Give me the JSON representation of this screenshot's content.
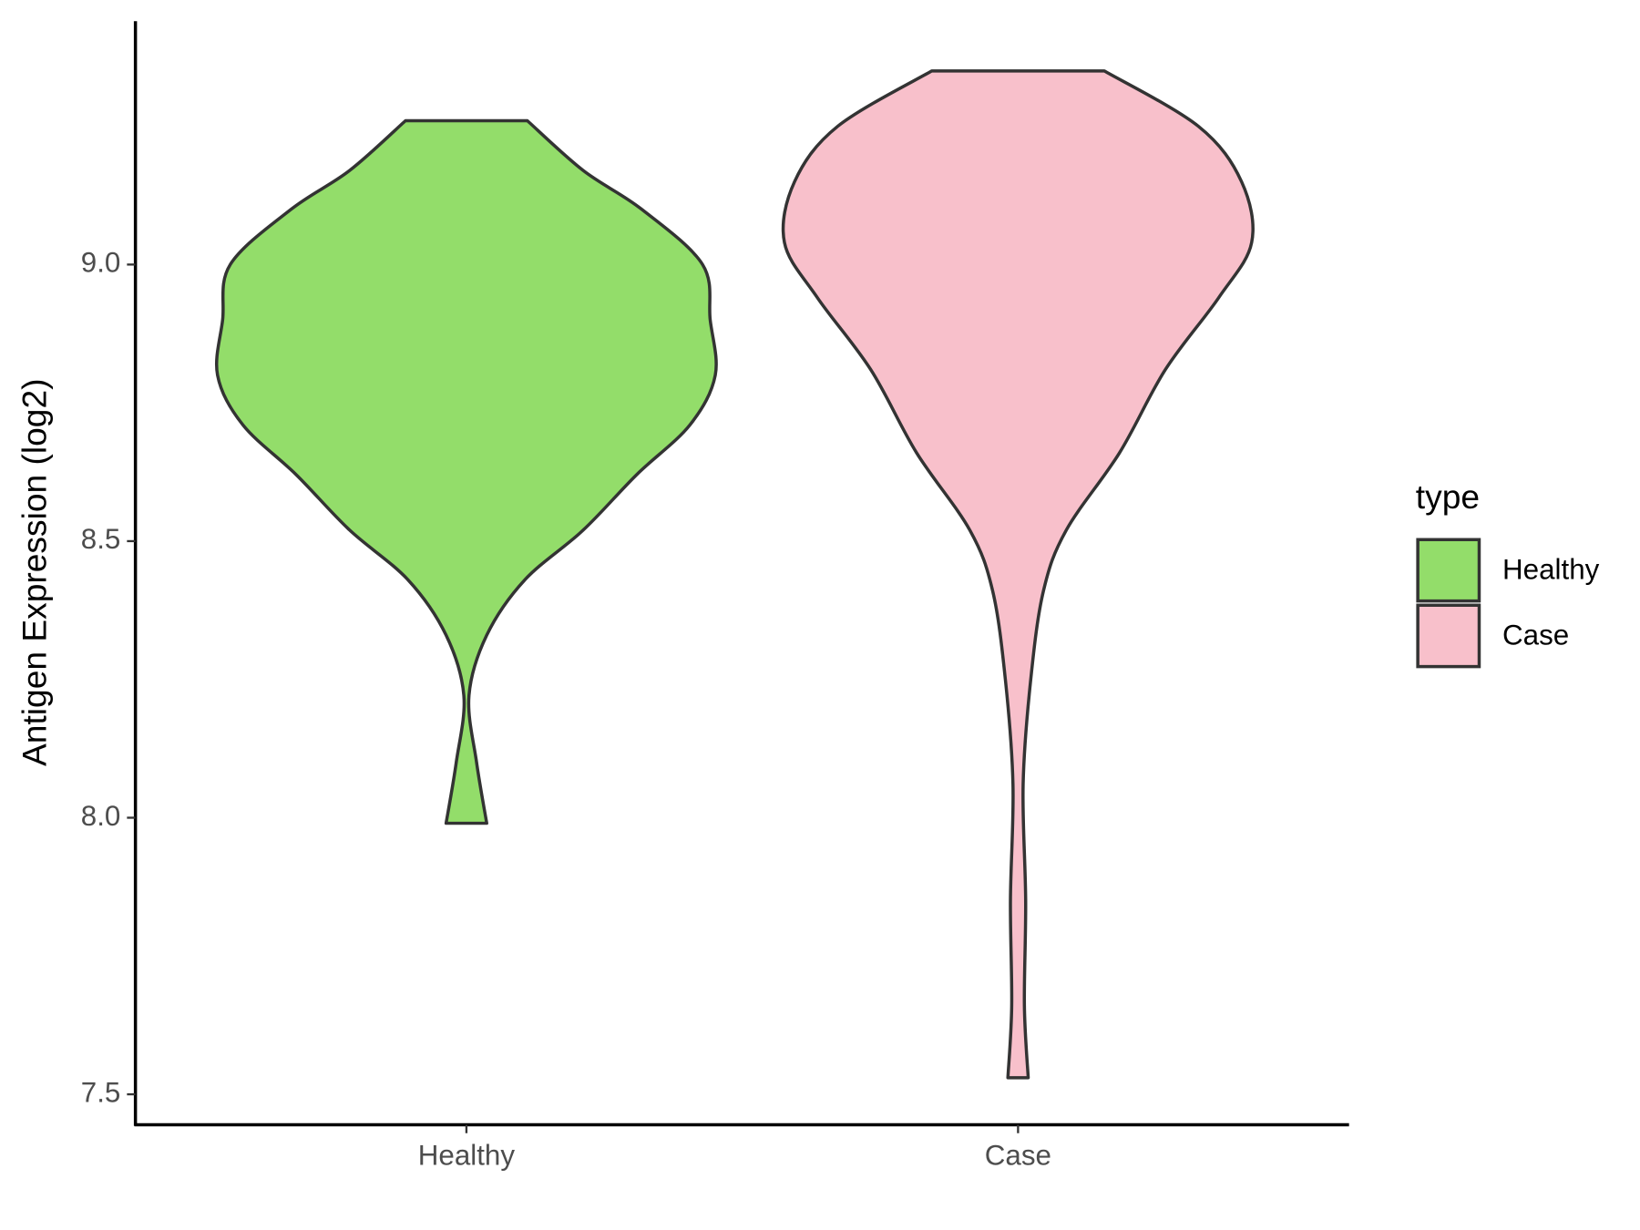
{
  "chart_data": {
    "type": "violin",
    "ylabel": "Antigen Expression (log2)",
    "categories": [
      "Healthy",
      "Case"
    ],
    "ylim": [
      7.445,
      9.44
    ],
    "yticks": [
      {
        "value": 7.5,
        "label": "7.5"
      },
      {
        "value": 8.0,
        "label": "8.0"
      },
      {
        "value": 8.5,
        "label": "8.5"
      },
      {
        "value": 9.0,
        "label": "9.0"
      }
    ],
    "legend_title": "type",
    "legend_position": "right",
    "series": [
      {
        "name": "Healthy",
        "color": "#93dd6a",
        "values": [
          9.26,
          9.17,
          9.1,
          9.0,
          8.9,
          8.8,
          8.71,
          8.62,
          8.52,
          8.43,
          8.33,
          8.22,
          8.1,
          7.99
        ],
        "density": [
          0.24,
          0.46,
          0.69,
          0.93,
          0.96,
          0.98,
          0.88,
          0.67,
          0.46,
          0.23,
          0.08,
          0.01,
          0.04,
          0.08
        ]
      },
      {
        "name": "Case",
        "color": "#f8c0cb",
        "values": [
          9.35,
          9.25,
          9.15,
          9.04,
          8.94,
          8.81,
          8.66,
          8.52,
          8.41,
          8.25,
          8.06,
          7.85,
          7.66,
          7.53
        ],
        "density": [
          0.34,
          0.71,
          0.88,
          0.92,
          0.79,
          0.58,
          0.4,
          0.19,
          0.1,
          0.05,
          0.02,
          0.03,
          0.025,
          0.04
        ]
      }
    ]
  }
}
